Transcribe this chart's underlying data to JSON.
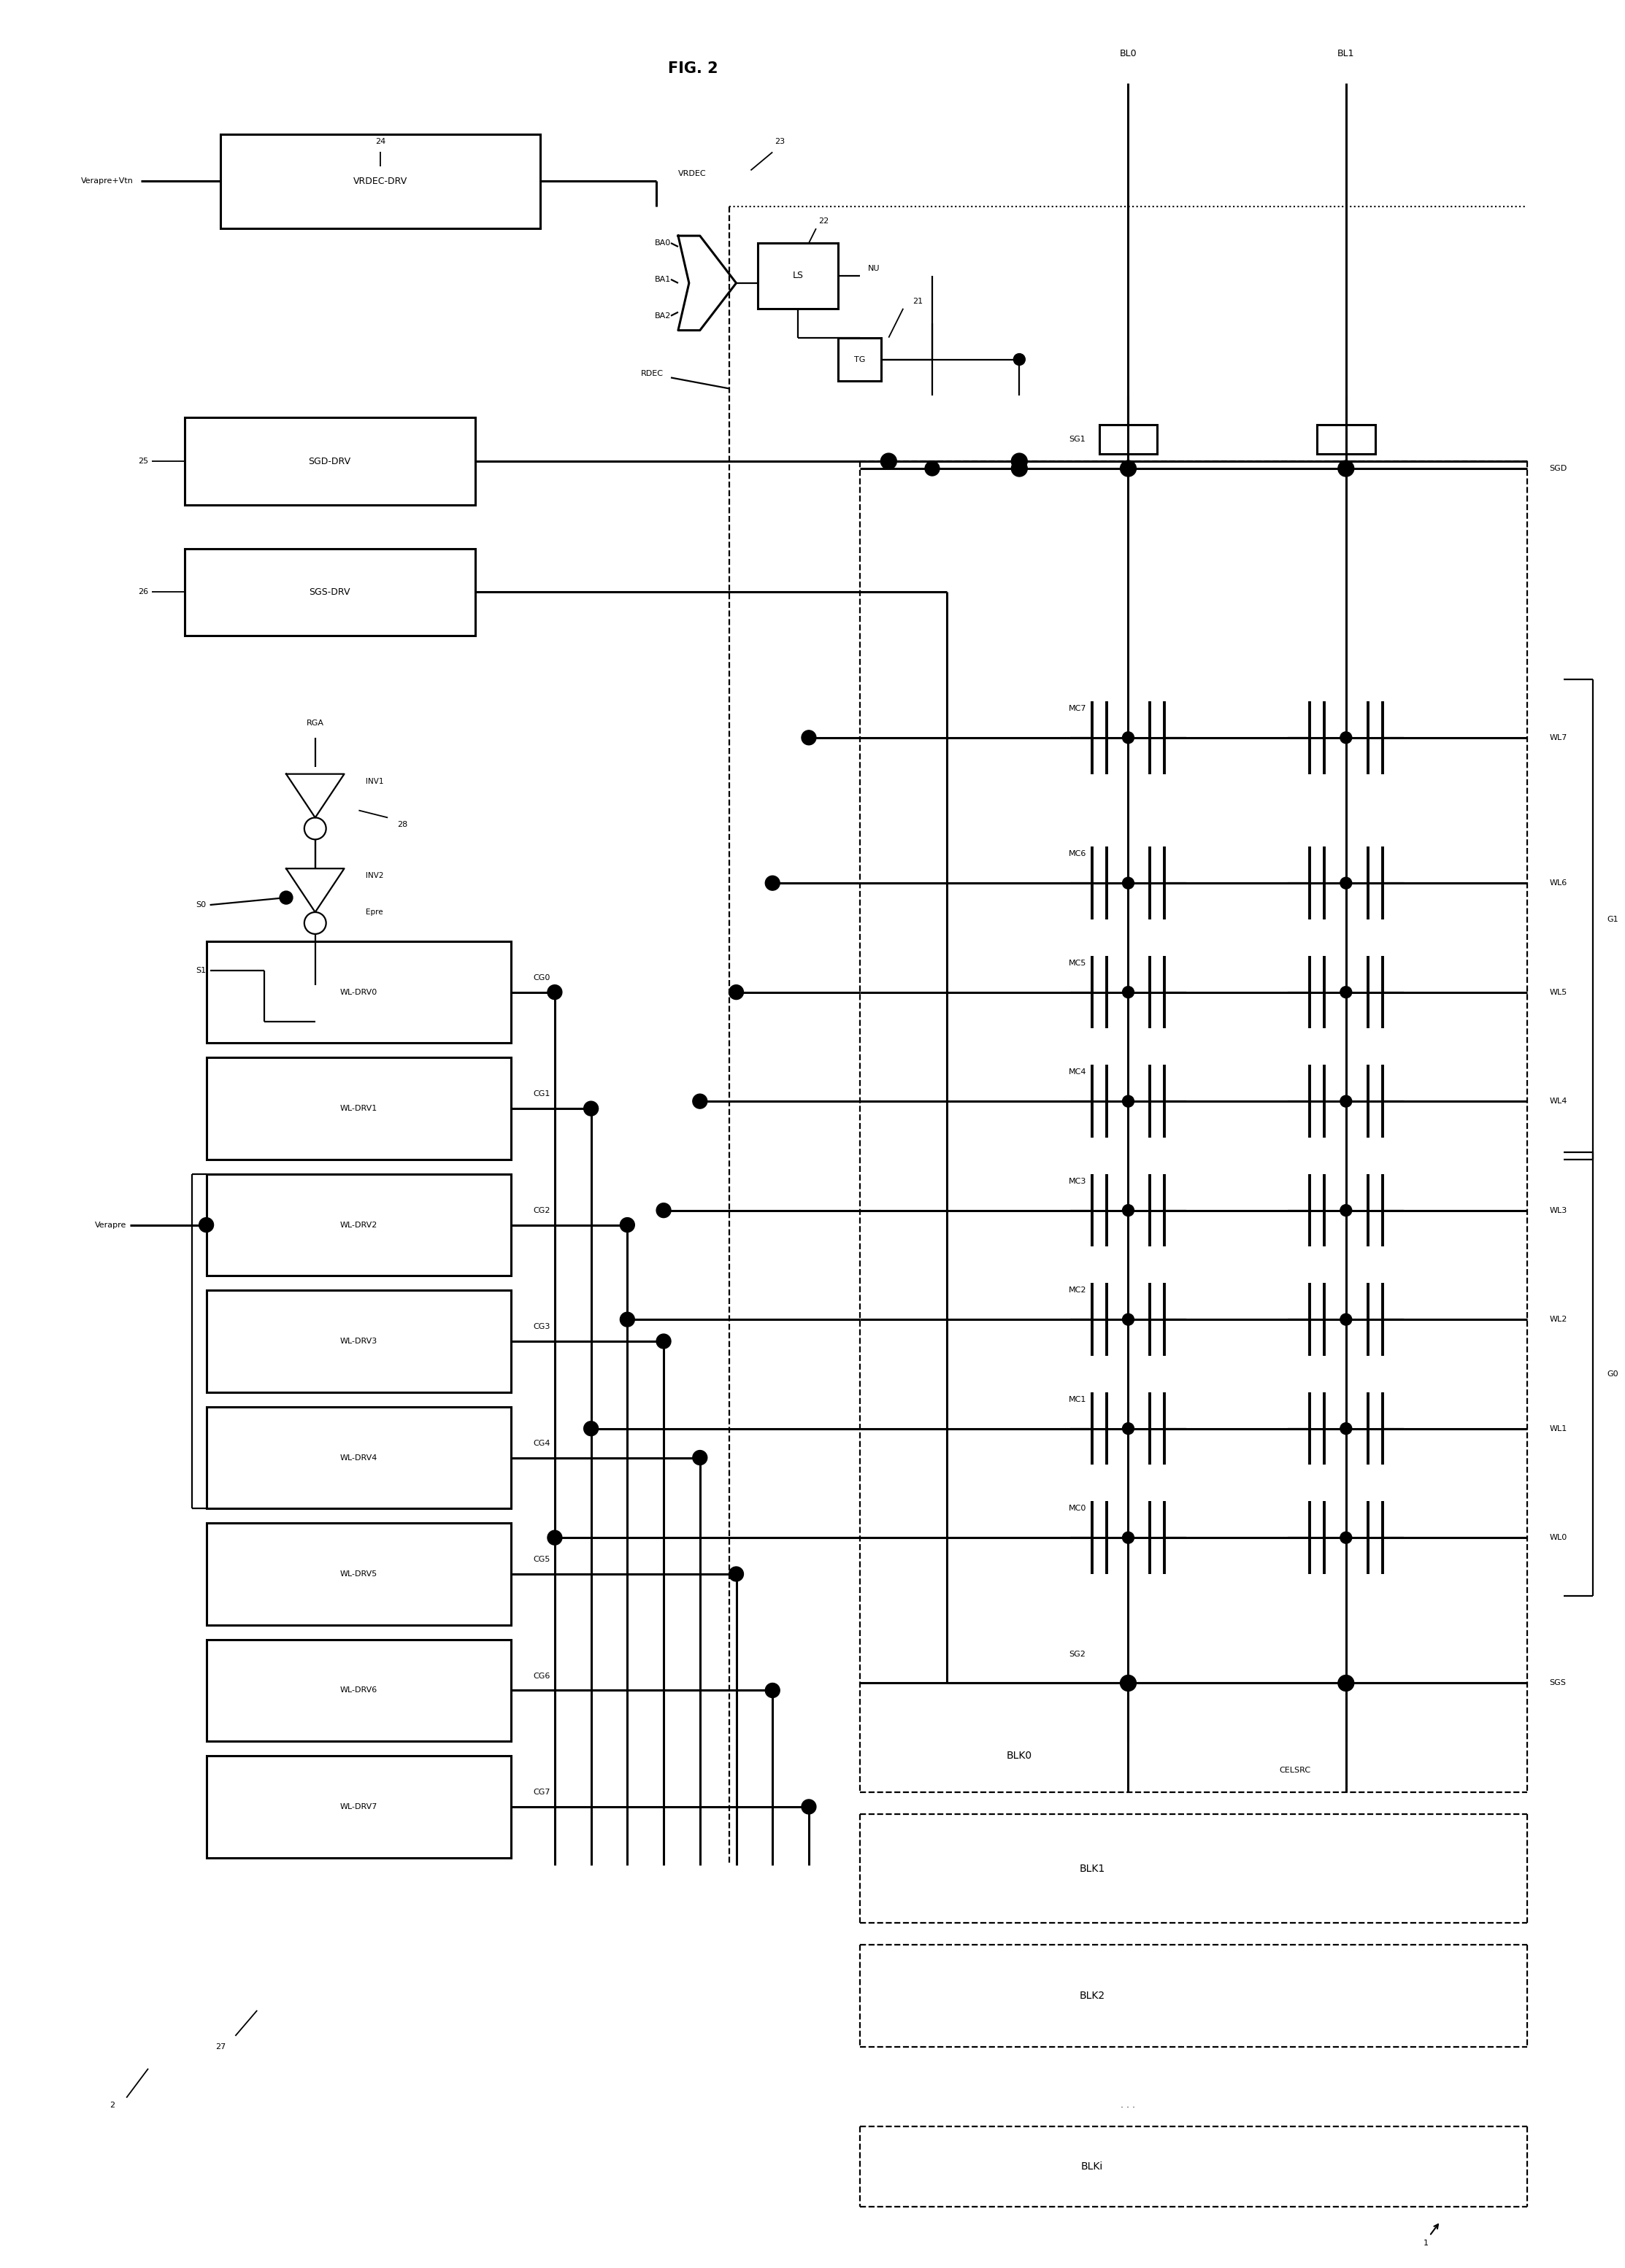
{
  "title": "FIG. 2",
  "bg": "#ffffff",
  "lc": "#000000",
  "fw": 22.26,
  "fh": 31.08,
  "dpi": 100,
  "wl_drv": [
    "WL-DRV0",
    "WL-DRV1",
    "WL-DRV2",
    "WL-DRV3",
    "WL-DRV4",
    "WL-DRV5",
    "WL-DRV6",
    "WL-DRV7"
  ],
  "cg": [
    "CG0",
    "CG1",
    "CG2",
    "CG3",
    "CG4",
    "CG5",
    "CG6",
    "CG7"
  ],
  "wl": [
    "WL0",
    "WL1",
    "WL2",
    "WL3",
    "WL4",
    "WL5",
    "WL6",
    "WL7"
  ],
  "mc": [
    "MC0",
    "MC1",
    "MC2",
    "MC3",
    "MC4",
    "MC5",
    "MC6",
    "MC7"
  ]
}
